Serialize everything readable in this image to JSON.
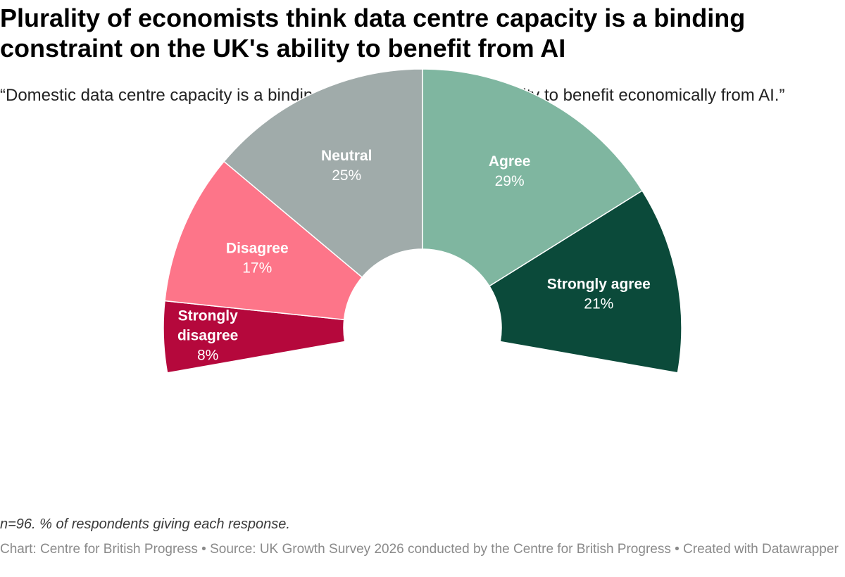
{
  "header": {
    "title": "Plurality of economists think data centre capacity is a binding constraint on the UK's ability to benefit from AI",
    "subtitle": "“Domestic data centre capacity is a binding constraint on the UK's ability to benefit economically from AI.”"
  },
  "chart_data": {
    "type": "pie",
    "variant": "half-donut",
    "title": "Plurality of economists think data centre capacity is a binding constraint on the UK's ability to benefit from AI",
    "subtitle": "“Domestic data centre capacity is a binding constraint on the UK's ability to benefit economically from AI.”",
    "unit": "%",
    "slices": [
      {
        "label": "Strongly disagree",
        "value": 8,
        "value_label": "8%",
        "color": "#b5083c"
      },
      {
        "label": "Disagree",
        "value": 17,
        "value_label": "17%",
        "color": "#fd7589"
      },
      {
        "label": "Neutral",
        "value": 25,
        "value_label": "25%",
        "color": "#a0abaa"
      },
      {
        "label": "Agree",
        "value": 29,
        "value_label": "29%",
        "color": "#7fb6a0"
      },
      {
        "label": "Strongly agree",
        "value": 21,
        "value_label": "21%",
        "color": "#0b4a3a"
      }
    ]
  },
  "notes": "n=96. % of respondents giving each response.",
  "footer": "Chart: Centre for British Progress • Source: UK Growth Survey 2026 conducted by the Centre for British Progress • Created with Datawrapper"
}
